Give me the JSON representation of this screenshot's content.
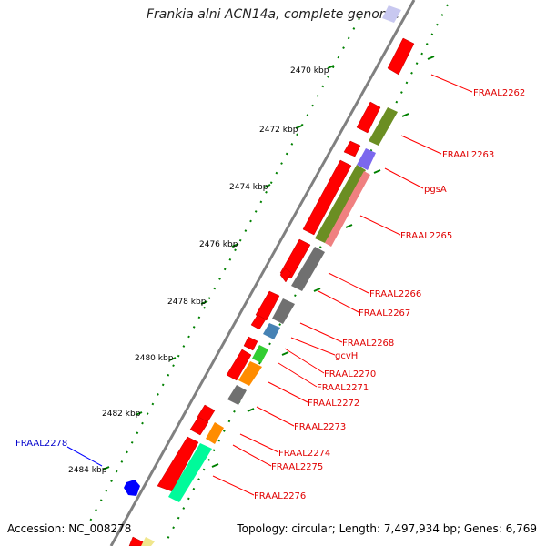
{
  "title": "Frankia alni ACN14a, complete genome",
  "footer": {
    "accession": "Accession: NC_008278",
    "summary": "Topology: circular; Length: 7,497,934 bp; Genes: 6,769"
  },
  "scale_ticks": [
    "2470 kbp",
    "2472 kbp",
    "2474 kbp",
    "2476 kbp",
    "2478 kbp",
    "2480 kbp",
    "2482 kbp",
    "2484 kbp"
  ],
  "gene_labels": [
    "FRAAL2262",
    "FRAAL2263",
    "pgsA",
    "FRAAL2265",
    "FRAAL2266",
    "FRAAL2267",
    "FRAAL2268",
    "gcvH",
    "FRAAL2270",
    "FRAAL2271",
    "FRAAL2272",
    "FRAAL2273",
    "FRAAL2274",
    "FRAAL2275",
    "FRAAL2276",
    "FRAAL2278"
  ],
  "colors": {
    "cds": "#ff0000",
    "olive": "#6b8e23",
    "purple": "#7b68ee",
    "salmon": "#f08080",
    "gray": "#707070",
    "steel": "#4682b4",
    "green": "#32cd32",
    "orange": "#ff8c00",
    "aqua": "#00fa9a",
    "blue": "#0000ff",
    "lavender": "#c8c8f0",
    "khaki": "#f0e68c",
    "label_red": "#e00000",
    "label_blue": "#0000cc",
    "backbone": "#808080",
    "tick_dots": "#008000"
  }
}
